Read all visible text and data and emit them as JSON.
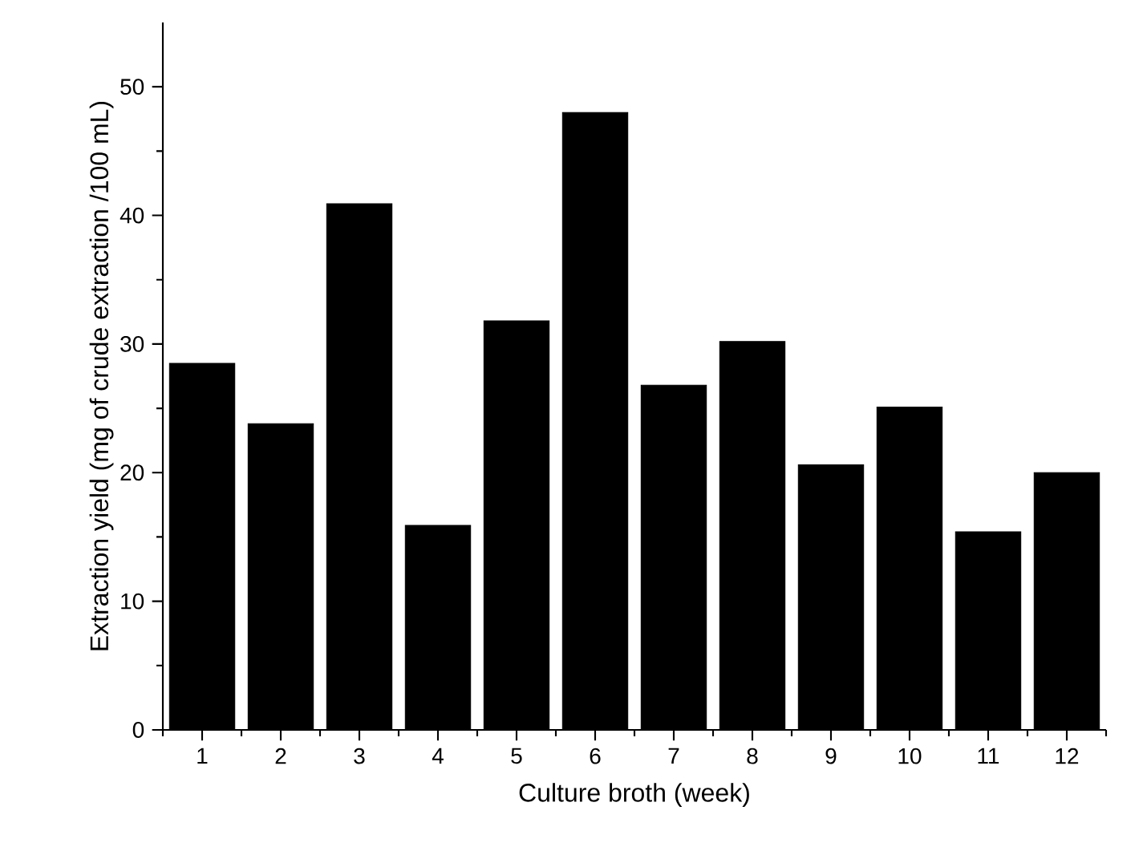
{
  "chart_data": {
    "type": "bar",
    "xlabel": "Culture broth (week)",
    "ylabel": "Extraction yield (mg of crude extraction /100 mL)",
    "categories": [
      "1",
      "2",
      "3",
      "4",
      "5",
      "6",
      "7",
      "8",
      "9",
      "10",
      "11",
      "12"
    ],
    "values": [
      28.5,
      23.8,
      40.9,
      15.9,
      31.8,
      48.0,
      26.8,
      30.2,
      20.6,
      25.1,
      15.4,
      20.0
    ],
    "color": "#000000",
    "ylim": [
      0,
      55
    ],
    "yticks": [
      0,
      10,
      20,
      30,
      40,
      50
    ],
    "grid": false
  }
}
